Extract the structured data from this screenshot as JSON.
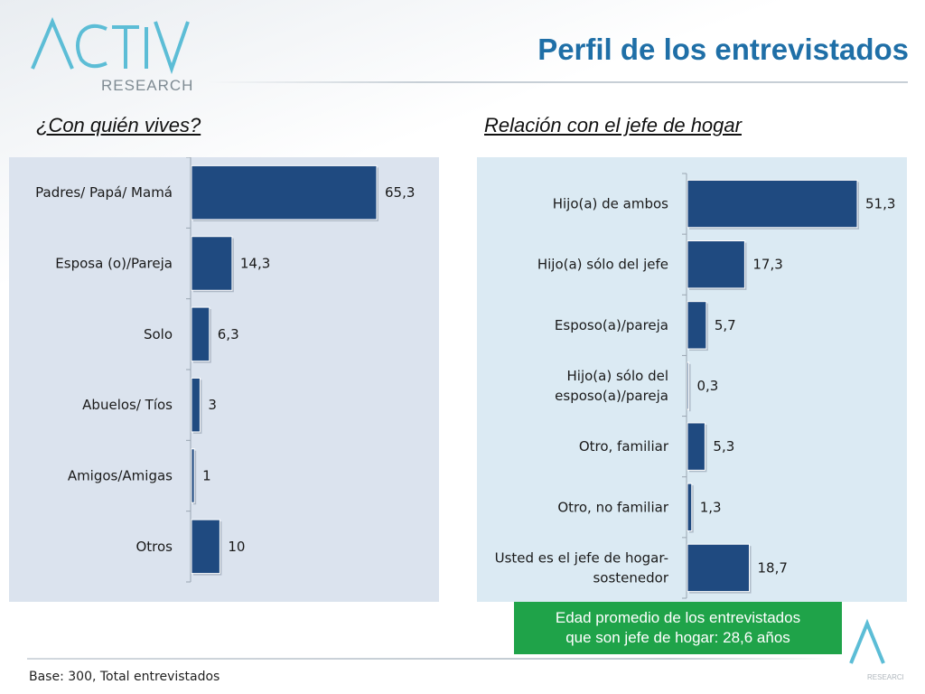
{
  "header": {
    "title": "Perfil de los entrevistados",
    "logo_text": "ACTIVA",
    "logo_subtext": "RESEARCH"
  },
  "colors": {
    "bar": "#1f4a80",
    "panel_left": "#dbe3ee",
    "panel_right": "#dbeaf3",
    "title": "#1f6fa7",
    "info_box": "#1fa349"
  },
  "left": {
    "subtitle": "¿Con quién vives?"
  },
  "right": {
    "subtitle": "Relación con el jefe de hogar"
  },
  "chart_data": [
    {
      "type": "bar",
      "orientation": "horizontal",
      "title": "¿Con quién vives?",
      "categories": [
        "Padres/ Papá/ Mamá",
        "Esposa (o)/Pareja",
        "Solo",
        "Abuelos/ Tíos",
        "Amigos/Amigas",
        "Otros"
      ],
      "values": [
        65.3,
        14.3,
        6.3,
        3,
        1,
        10
      ],
      "value_labels": [
        "65,3",
        "14,3",
        "6,3",
        "3",
        "1",
        "10"
      ],
      "xlim": [
        0,
        65.3
      ],
      "grid": false
    },
    {
      "type": "bar",
      "orientation": "horizontal",
      "title": "Relación con el jefe de hogar",
      "categories": [
        "Hijo(a) de ambos",
        "Hijo(a) sólo del jefe",
        "Esposo(a)/pareja",
        "Hijo(a) sólo del esposo(a)/pareja",
        "Otro, familiar",
        "Otro, no familiar",
        "Usted es el jefe de hogar-sostenedor"
      ],
      "category_lines": [
        [
          "Hijo(a) de ambos"
        ],
        [
          "Hijo(a) sólo del jefe"
        ],
        [
          "Esposo(a)/pareja"
        ],
        [
          "Hijo(a) sólo del",
          "esposo(a)/pareja"
        ],
        [
          "Otro, familiar"
        ],
        [
          "Otro, no familiar"
        ],
        [
          "Usted es el jefe de hogar-",
          "sostenedor"
        ]
      ],
      "values": [
        51.3,
        17.3,
        5.7,
        0.3,
        5.3,
        1.3,
        18.7
      ],
      "value_labels": [
        "51,3",
        "17,3",
        "5,7",
        "0,3",
        "5,3",
        "1,3",
        "18,7"
      ],
      "xlim": [
        0,
        51.3
      ],
      "grid": false
    }
  ],
  "info_box": {
    "line1": "Edad promedio de los entrevistados",
    "line2": "que son jefe de hogar: 28,6 años"
  },
  "footer": {
    "base": "Base: 300, Total entrevistados"
  }
}
